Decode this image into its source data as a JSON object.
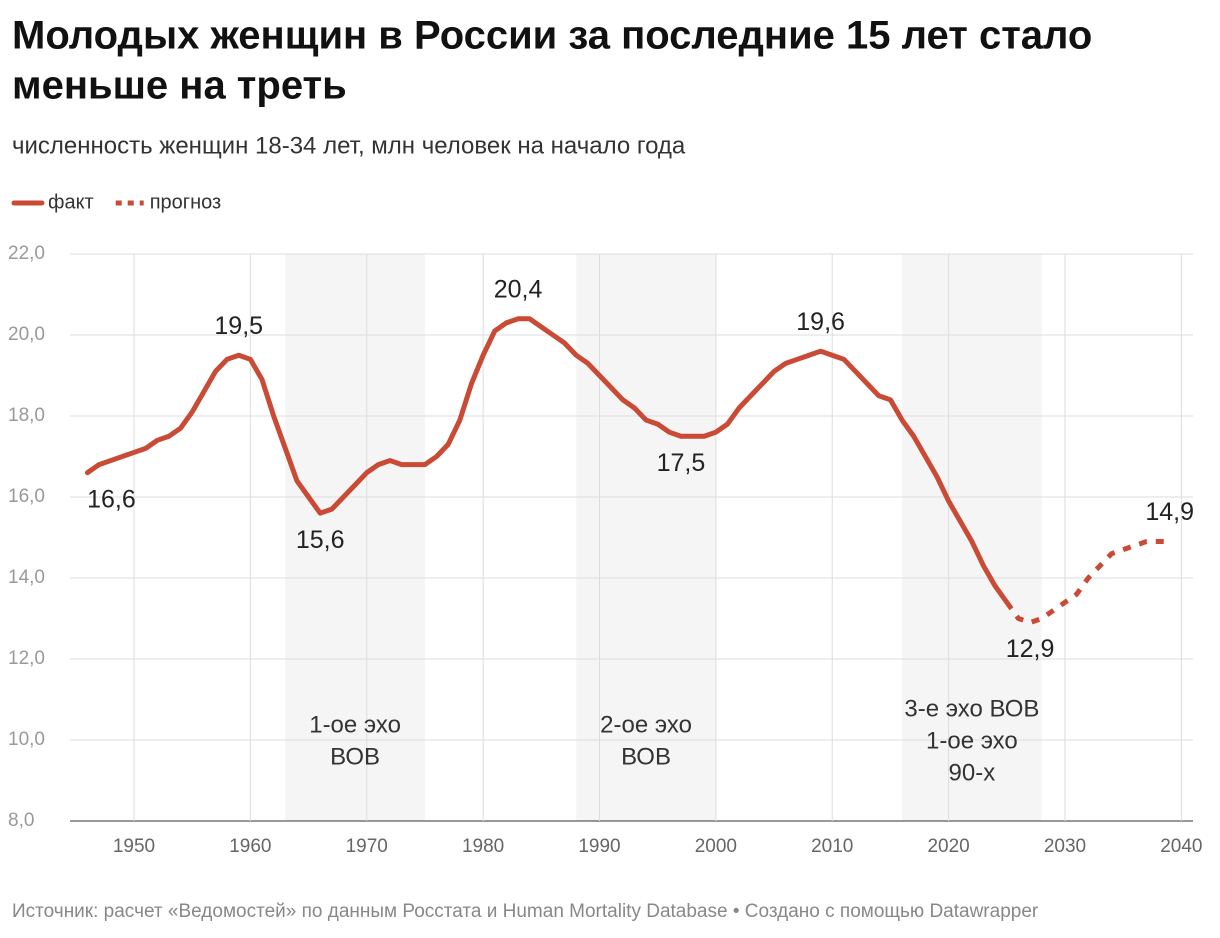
{
  "chart_data": {
    "type": "line",
    "title": "Молодых женщин в России за последние 15 лет стало меньше на треть",
    "title_lines": [
      "Молодых женщин в России за последние 15 лет стало",
      "меньше на треть"
    ],
    "subtitle": "численность женщин 18-34 лет, млн человек на начало года",
    "source": "Источник: расчет «Ведомостей» по данным Росстата и Human Mortality Database • Создано с помощью Datawrapper",
    "legend": "top-left",
    "grid": true,
    "xlim": [
      1944.5,
      2041
    ],
    "ylim": [
      8,
      22
    ],
    "xticks": [
      1950,
      1960,
      1970,
      1980,
      1990,
      2000,
      2010,
      2020,
      2030,
      2040
    ],
    "yticks": [
      {
        "value": 8,
        "label": "8,0"
      },
      {
        "value": 10,
        "label": "10,0"
      },
      {
        "value": 12,
        "label": "12,0"
      },
      {
        "value": 14,
        "label": "14,0"
      },
      {
        "value": 16,
        "label": "16,0"
      },
      {
        "value": 18,
        "label": "18,0"
      },
      {
        "value": 20,
        "label": "20,0"
      },
      {
        "value": 22,
        "label": "22,0"
      }
    ],
    "bands": [
      {
        "from": 1963,
        "to": 1975,
        "label": [
          "1-ое эхо",
          "ВОВ"
        ]
      },
      {
        "from": 1988,
        "to": 2000,
        "label": [
          "2-ое эхо",
          "ВОВ"
        ]
      },
      {
        "from": 2016,
        "to": 2028,
        "label": [
          "3-е эхо ВОВ",
          "1-ое эхо",
          "90-х"
        ]
      }
    ],
    "series": [
      {
        "name": "факт",
        "color": "#c94a35",
        "dashed": false,
        "x": [
          1946,
          1947,
          1948,
          1949,
          1950,
          1951,
          1952,
          1953,
          1954,
          1955,
          1956,
          1957,
          1958,
          1959,
          1960,
          1961,
          1962,
          1963,
          1964,
          1965,
          1966,
          1967,
          1968,
          1969,
          1970,
          1971,
          1972,
          1973,
          1974,
          1975,
          1976,
          1977,
          1978,
          1979,
          1980,
          1981,
          1982,
          1983,
          1984,
          1985,
          1986,
          1987,
          1988,
          1989,
          1990,
          1991,
          1992,
          1993,
          1994,
          1995,
          1996,
          1997,
          1998,
          1999,
          2000,
          2001,
          2002,
          2003,
          2004,
          2005,
          2006,
          2007,
          2008,
          2009,
          2010,
          2011,
          2012,
          2013,
          2014,
          2015,
          2016,
          2017,
          2018,
          2019,
          2020,
          2021,
          2022,
          2023,
          2024,
          2025
        ],
        "values": [
          16.6,
          16.8,
          16.9,
          17.0,
          17.1,
          17.2,
          17.4,
          17.5,
          17.7,
          18.1,
          18.6,
          19.1,
          19.4,
          19.5,
          19.4,
          18.9,
          18.0,
          17.2,
          16.4,
          16.0,
          15.6,
          15.7,
          16.0,
          16.3,
          16.6,
          16.8,
          16.9,
          16.8,
          16.8,
          16.8,
          17.0,
          17.3,
          17.9,
          18.8,
          19.5,
          20.1,
          20.3,
          20.4,
          20.4,
          20.2,
          20.0,
          19.8,
          19.5,
          19.3,
          19.0,
          18.7,
          18.4,
          18.2,
          17.9,
          17.8,
          17.6,
          17.5,
          17.5,
          17.5,
          17.6,
          17.8,
          18.2,
          18.5,
          18.8,
          19.1,
          19.3,
          19.4,
          19.5,
          19.6,
          19.5,
          19.4,
          19.1,
          18.8,
          18.5,
          18.4,
          17.9,
          17.5,
          17.0,
          16.5,
          15.9,
          15.4,
          14.9,
          14.3,
          13.8,
          13.4
        ],
        "value_labels": [
          "16,6",
          null,
          null,
          null,
          null,
          null,
          null,
          null,
          null,
          null,
          null,
          null,
          null,
          "19,5",
          null,
          null,
          null,
          null,
          null,
          null,
          "15,6",
          null,
          null,
          null,
          null,
          null,
          null,
          null,
          null,
          null,
          null,
          null,
          null,
          null,
          null,
          null,
          null,
          "20,4",
          null,
          null,
          null,
          null,
          null,
          null,
          null,
          null,
          null,
          null,
          null,
          null,
          null,
          "17,5",
          null,
          null,
          null,
          null,
          null,
          null,
          null,
          null,
          null,
          null,
          null,
          "19,6",
          null,
          null,
          null,
          null,
          null,
          null,
          null,
          null,
          null,
          null,
          null,
          null,
          null,
          null,
          null,
          null
        ]
      },
      {
        "name": "прогноз",
        "color": "#c94a35",
        "dashed": true,
        "x": [
          2025,
          2026,
          2027,
          2028,
          2029,
          2030,
          2031,
          2032,
          2033,
          2034,
          2035,
          2036,
          2037,
          2038,
          2039
        ],
        "values": [
          13.4,
          13.0,
          12.9,
          13.0,
          13.2,
          13.4,
          13.6,
          14.0,
          14.3,
          14.6,
          14.7,
          14.8,
          14.9,
          14.9,
          14.9
        ],
        "value_labels": [
          null,
          null,
          "12,9",
          null,
          null,
          null,
          null,
          null,
          null,
          null,
          null,
          null,
          null,
          null,
          "14,9"
        ]
      }
    ]
  }
}
